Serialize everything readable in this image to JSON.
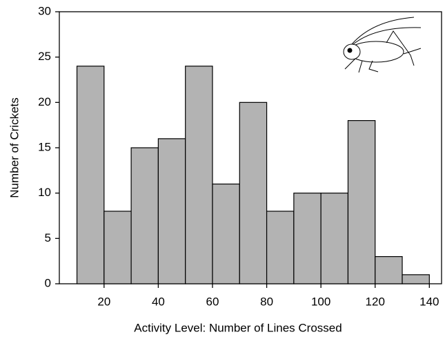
{
  "chart_data": {
    "type": "histogram",
    "x_label": "Activity Level: Number of Lines Crossed",
    "y_label": "Number of Crickets",
    "bins": [
      10,
      20,
      30,
      40,
      50,
      60,
      70,
      80,
      90,
      100,
      110,
      120,
      130,
      140
    ],
    "values": [
      24,
      8,
      15,
      16,
      24,
      11,
      20,
      8,
      10,
      10,
      18,
      3,
      1
    ],
    "color": "#b3b3b3",
    "xlim": [
      3.5,
      144.5
    ],
    "xticks": [
      20,
      40,
      60,
      80,
      100,
      120,
      140
    ],
    "ylim": [
      0,
      30
    ],
    "yticks": [
      0,
      5,
      10,
      15,
      20,
      25,
      30
    ]
  }
}
